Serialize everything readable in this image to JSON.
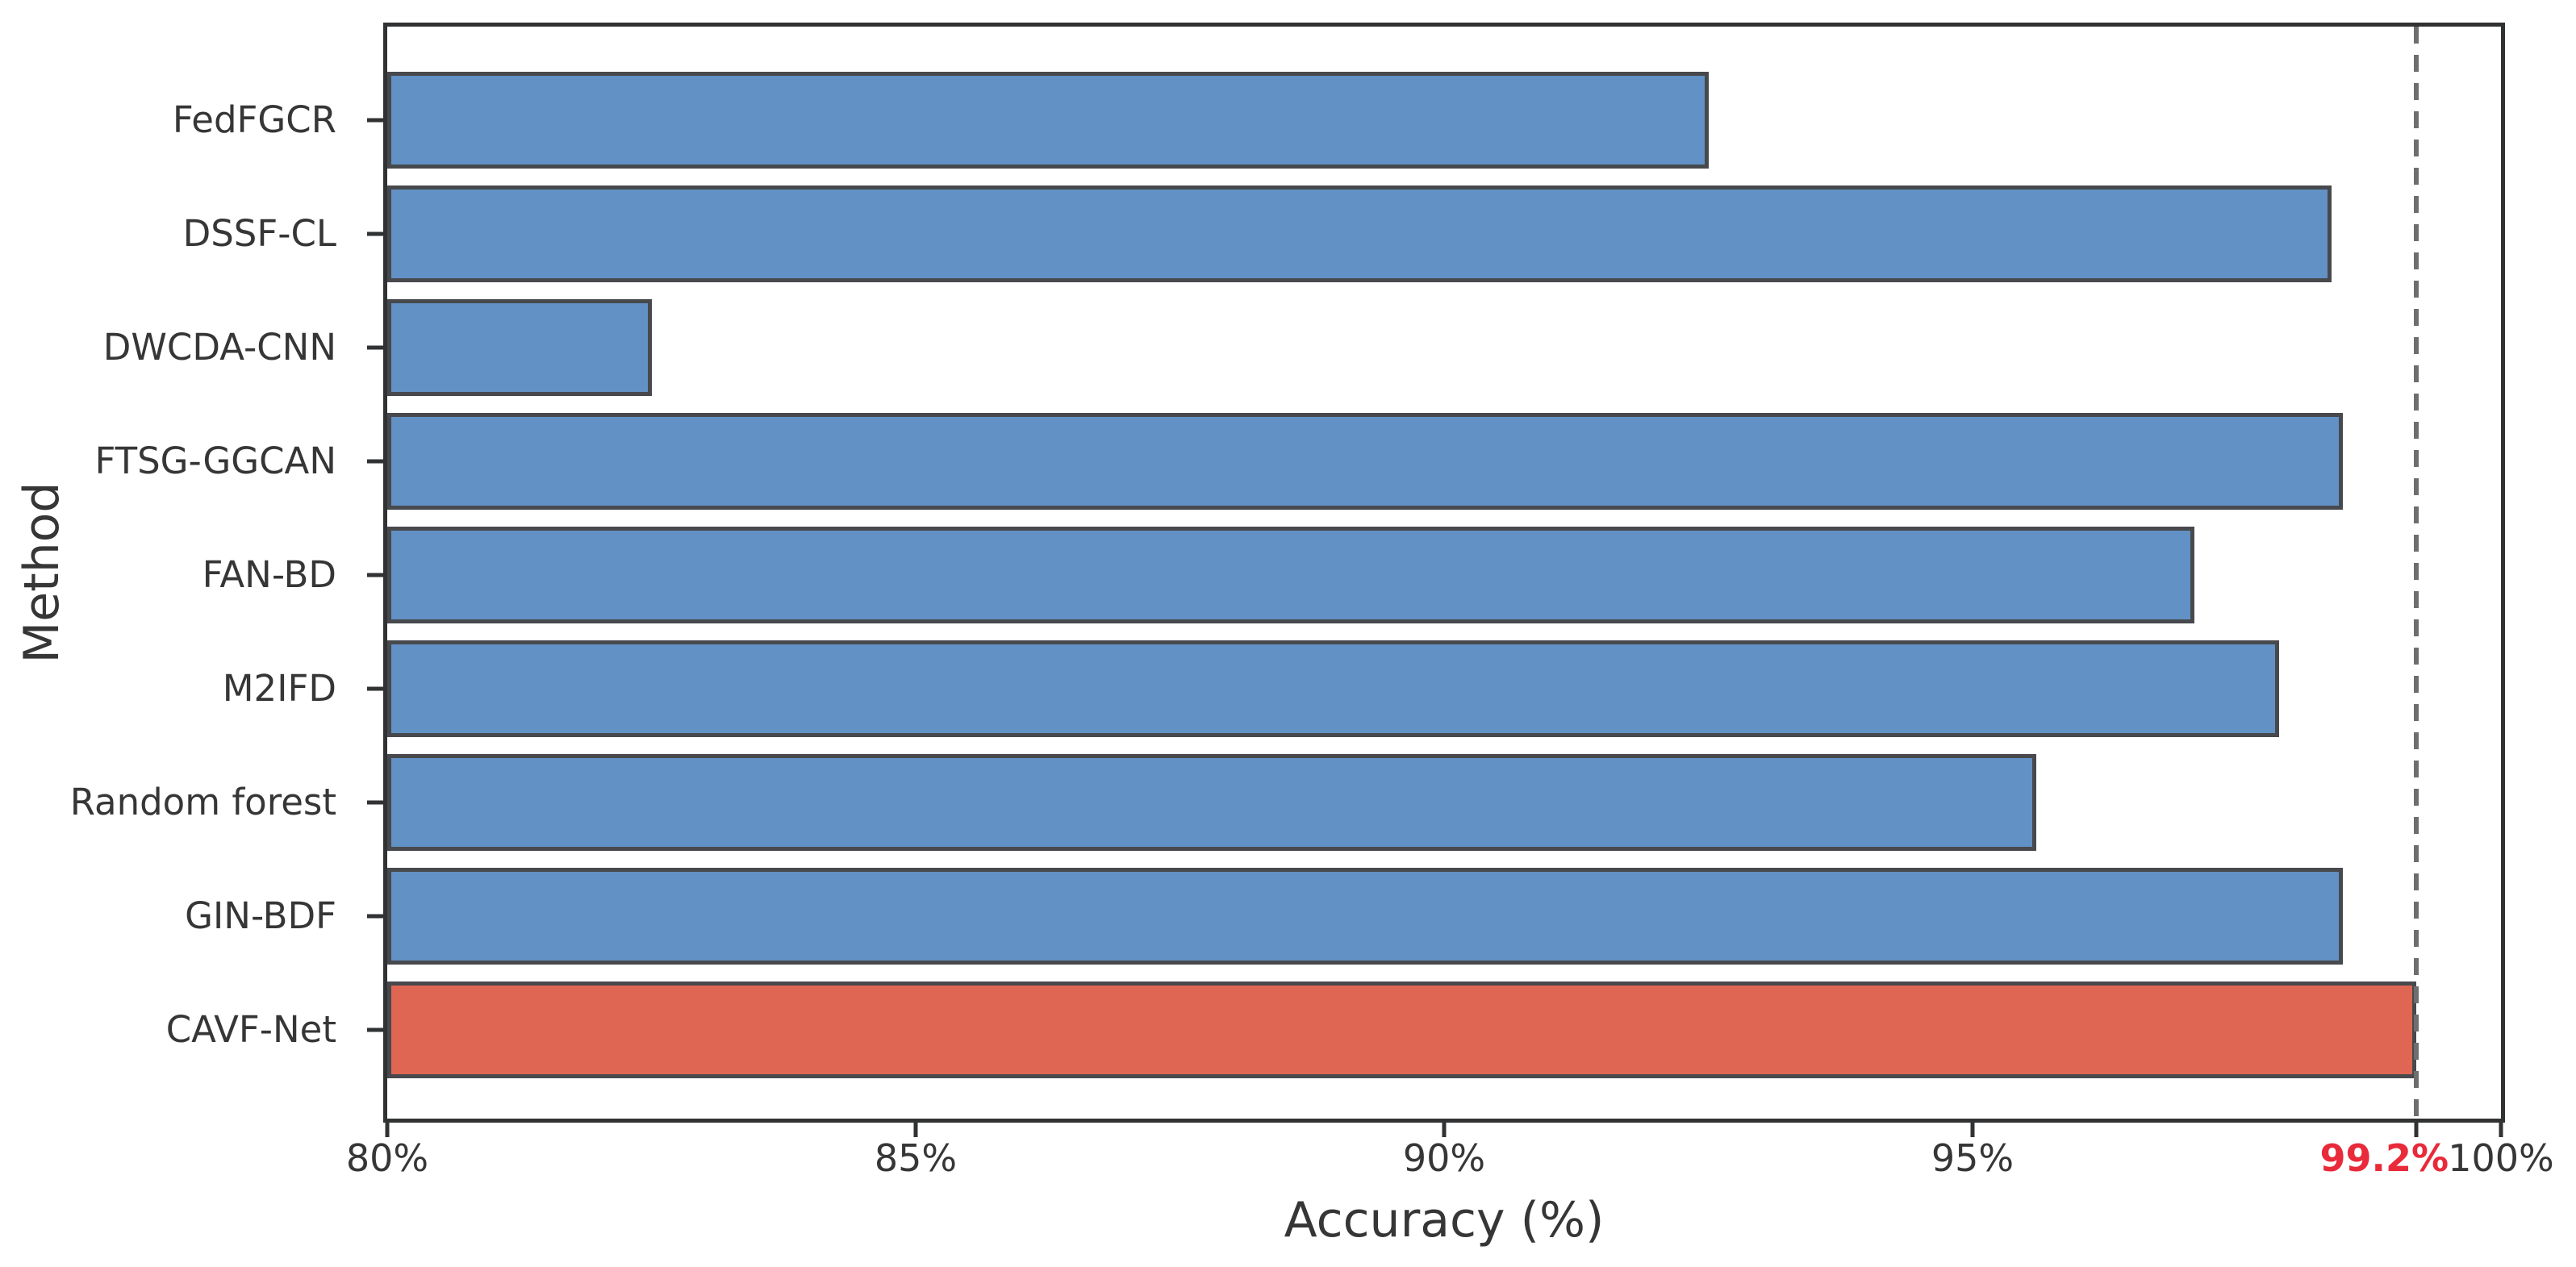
{
  "chart_data": {
    "type": "bar",
    "orientation": "horizontal",
    "xlabel": "Accuracy (%)",
    "ylabel": "Method",
    "xlim": [
      80,
      100
    ],
    "grid": false,
    "legend_position": "none",
    "categories": [
      "FedFGCR",
      "DSSF-CL",
      "DWCDA-CNN",
      "FTSG-GGCAN",
      "FAN-BD",
      "M2IFD",
      "Random forest",
      "GIN-BDF",
      "CAVF-Net"
    ],
    "values": [
      92.5,
      98.4,
      82.5,
      98.5,
      97.1,
      97.9,
      95.6,
      98.5,
      99.2
    ],
    "highlight_category": "CAVF-Net",
    "xticks": [
      {
        "value": 80,
        "label": "80%"
      },
      {
        "value": 85,
        "label": "85%"
      },
      {
        "value": 90,
        "label": "90%"
      },
      {
        "value": 95,
        "label": "95%"
      },
      {
        "value": 100,
        "label": "100%"
      }
    ],
    "threshold_line": {
      "value": 99.2,
      "label": "99.2%",
      "style": "dashed"
    },
    "colors": {
      "bar": "#6291c5",
      "highlight_bar": "#de6652",
      "bar_edge": "#47494d",
      "threshold_line": "#6e6e6e",
      "threshold_label": "#e82a3a",
      "axis": "#303233",
      "text": "#363636"
    }
  }
}
